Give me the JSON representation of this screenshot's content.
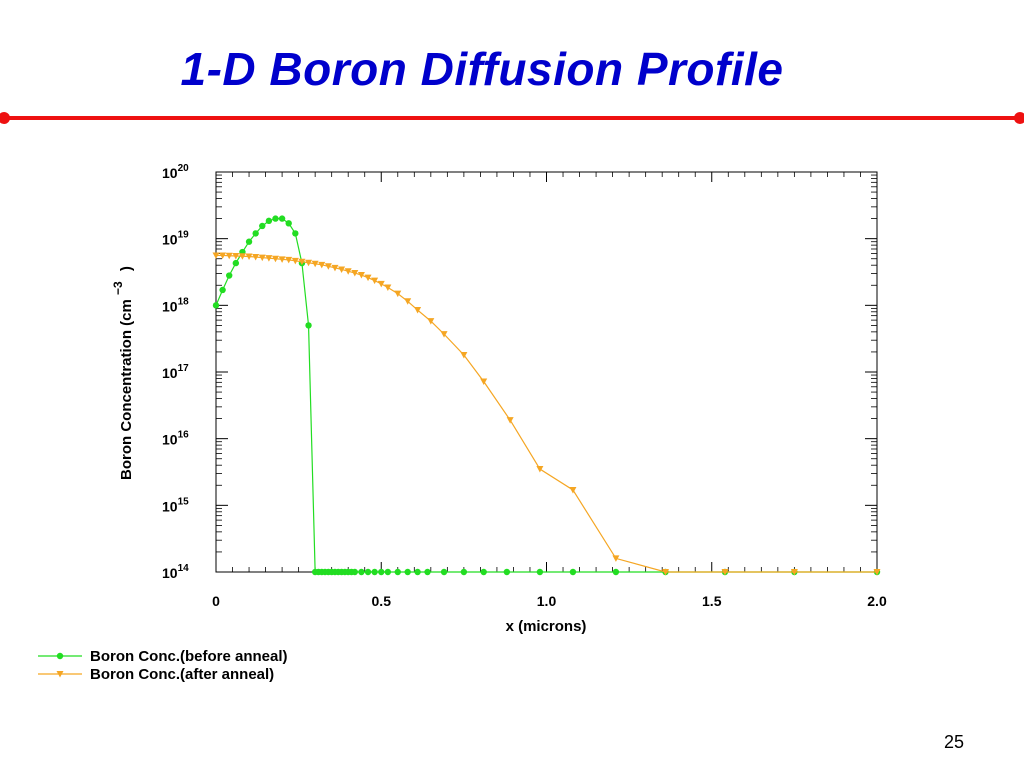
{
  "slide": {
    "title": "1-D Boron Diffusion Profile",
    "page_number": "25",
    "title_color": "#0000cc",
    "rule_color": "#ee1111"
  },
  "chart_data": {
    "type": "line",
    "title": "",
    "xlabel": "x (microns)",
    "ylabel": "Boron Concentration (cm",
    "ylabel_superscript": "−3",
    "ylabel_close": ")",
    "xlim": [
      0,
      2.0
    ],
    "ylim": [
      100000000000000.0,
      1e+20
    ],
    "yscale": "log",
    "grid": false,
    "legend_position": "bottom-left",
    "x_ticks": [
      {
        "value": 0,
        "label": "0"
      },
      {
        "value": 0.5,
        "label": "0.5"
      },
      {
        "value": 1.0,
        "label": "1.0"
      },
      {
        "value": 1.5,
        "label": "1.5"
      },
      {
        "value": 2.0,
        "label": "2.0"
      }
    ],
    "y_ticks": [
      {
        "value": 100000000000000.0,
        "base": "10",
        "exp": "14"
      },
      {
        "value": 1000000000000000.0,
        "base": "10",
        "exp": "15"
      },
      {
        "value": 1e+16,
        "base": "10",
        "exp": "16"
      },
      {
        "value": 1e+17,
        "base": "10",
        "exp": "17"
      },
      {
        "value": 1e+18,
        "base": "10",
        "exp": "18"
      },
      {
        "value": 1e+19,
        "base": "10",
        "exp": "19"
      },
      {
        "value": 1e+20,
        "base": "10",
        "exp": "20"
      }
    ],
    "series": [
      {
        "name": "Boron Conc.(before anneal)",
        "color": "#22dd22",
        "marker": "circle",
        "x": [
          0.0,
          0.02,
          0.04,
          0.06,
          0.08,
          0.1,
          0.12,
          0.14,
          0.16,
          0.18,
          0.2,
          0.22,
          0.24,
          0.26,
          0.28,
          0.3,
          0.31,
          0.32,
          0.33,
          0.34,
          0.35,
          0.36,
          0.37,
          0.38,
          0.39,
          0.4,
          0.41,
          0.42,
          0.44,
          0.46,
          0.48,
          0.5,
          0.52,
          0.55,
          0.58,
          0.61,
          0.64,
          0.69,
          0.75,
          0.81,
          0.88,
          0.98,
          1.08,
          1.21,
          1.36,
          1.54,
          1.75,
          2.0
        ],
        "y": [
          1e+18,
          1.7e+18,
          2.8e+18,
          4.3e+18,
          6.3e+18,
          9e+18,
          1.2e+19,
          1.55e+19,
          1.85e+19,
          2e+19,
          2e+19,
          1.7e+19,
          1.2e+19,
          4.3e+18,
          5e+17,
          100000000000000.0,
          100000000000000.0,
          100000000000000.0,
          100000000000000.0,
          100000000000000.0,
          100000000000000.0,
          100000000000000.0,
          100000000000000.0,
          100000000000000.0,
          100000000000000.0,
          100000000000000.0,
          100000000000000.0,
          100000000000000.0,
          100000000000000.0,
          100000000000000.0,
          100000000000000.0,
          100000000000000.0,
          100000000000000.0,
          100000000000000.0,
          100000000000000.0,
          100000000000000.0,
          100000000000000.0,
          100000000000000.0,
          100000000000000.0,
          100000000000000.0,
          100000000000000.0,
          100000000000000.0,
          100000000000000.0,
          100000000000000.0,
          100000000000000.0,
          100000000000000.0,
          100000000000000.0,
          100000000000000.0
        ]
      },
      {
        "name": "Boron Conc.(after anneal)",
        "color": "#f5a623",
        "marker": "triangle-down",
        "x": [
          0.0,
          0.02,
          0.04,
          0.06,
          0.08,
          0.1,
          0.12,
          0.14,
          0.16,
          0.18,
          0.2,
          0.22,
          0.24,
          0.26,
          0.28,
          0.3,
          0.32,
          0.34,
          0.36,
          0.38,
          0.4,
          0.42,
          0.44,
          0.46,
          0.48,
          0.5,
          0.52,
          0.55,
          0.58,
          0.61,
          0.65,
          0.69,
          0.75,
          0.81,
          0.89,
          0.98,
          1.08,
          1.21,
          1.36,
          1.54,
          1.75,
          2.0
        ],
        "y": [
          5.6e+18,
          5.6e+18,
          5.55e+18,
          5.5e+18,
          5.45e+18,
          5.4e+18,
          5.3e+18,
          5.2e+18,
          5.1e+18,
          5e+18,
          4.9e+18,
          4.8e+18,
          4.65e+18,
          4.5e+18,
          4.35e+18,
          4.2e+18,
          4.05e+18,
          3.85e+18,
          3.65e+18,
          3.45e+18,
          3.25e+18,
          3.05e+18,
          2.85e+18,
          2.6e+18,
          2.35e+18,
          2.1e+18,
          1.85e+18,
          1.5e+18,
          1.15e+18,
          8.5e+17,
          5.8e+17,
          3.7e+17,
          1.8e+17,
          7.2e+16,
          1.9e+16,
          3500000000000000.0,
          1700000000000000.0,
          160000000000000.0,
          45000000000000.0,
          25000000000000.0,
          100000000000000.0,
          100000000000000.0
        ]
      }
    ]
  }
}
